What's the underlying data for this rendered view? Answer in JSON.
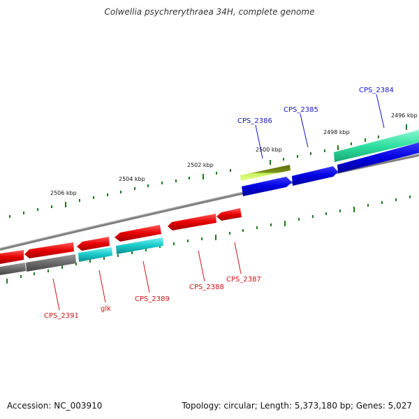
{
  "title": "Colwellia psychrerythraea 34H, complete genome",
  "footer": {
    "accession": "Accession: NC_003910",
    "summary": "Topology: circular; Length: 5,373,180 bp; Genes: 5,027"
  },
  "scale_labels": [
    "2506 kbp",
    "2504 kbp",
    "2502 kbp",
    "2500 kbp",
    "2498 kbp",
    "2496 kbp"
  ],
  "genes": {
    "top": [
      "CPS_2386",
      "CPS_2385",
      "CPS_2384"
    ],
    "bottom": [
      "CPS_2391",
      "glk",
      "CPS_2389",
      "CPS_2388",
      "CPS_2387"
    ]
  },
  "colors": {
    "forward_label": "#1414c8",
    "reverse_label": "#c81414",
    "tick": "#1a7a1a",
    "backbone": "#808080"
  }
}
